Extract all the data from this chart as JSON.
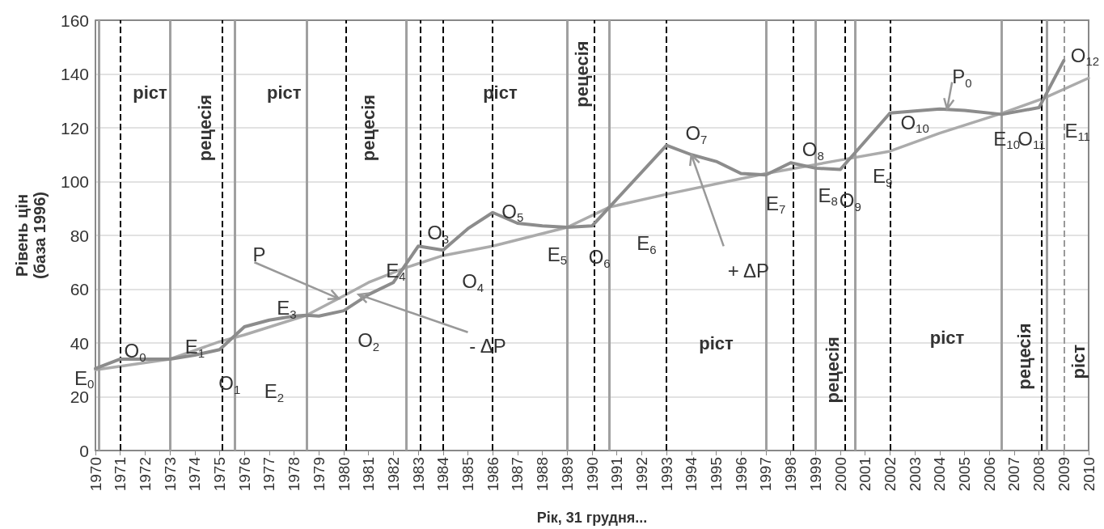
{
  "chart_data": {
    "type": "line",
    "xlabel": "Рік, 31 грудня...",
    "ylabel": "Рівень цін\n(база 1996)",
    "xlim": [
      1970,
      2010
    ],
    "xticks": [
      1970,
      1971,
      1972,
      1973,
      1974,
      1975,
      1976,
      1977,
      1978,
      1979,
      1980,
      1981,
      1982,
      1983,
      1984,
      1985,
      1986,
      1987,
      1988,
      1989,
      1990,
      1991,
      1992,
      1993,
      1994,
      1995,
      1996,
      1997,
      1998,
      1999,
      2000,
      2001,
      2002,
      2003,
      2004,
      2005,
      2006,
      2007,
      2008,
      2009,
      2010
    ],
    "ylim": [
      0,
      160
    ],
    "yticks": [
      0,
      20,
      40,
      60,
      80,
      100,
      120,
      140,
      160
    ],
    "grid": "y",
    "legend": false,
    "marker": "none",
    "line_style": "solid",
    "series": [
      {
        "color": "#8c8c8c",
        "x": [
          1970,
          1971,
          1972,
          1973,
          1974,
          1975,
          1976,
          1977,
          1978,
          1978.5,
          1979,
          1980,
          1981,
          1982,
          1983,
          1984,
          1985,
          1986,
          1987,
          1988,
          1989,
          1990,
          1993,
          1994,
          1995,
          1996,
          1997,
          1998,
          1999,
          2000,
          2002,
          2004,
          2005,
          2006.5,
          2008,
          2009
        ],
        "values": [
          30.5,
          34,
          34,
          34,
          35.5,
          37.5,
          46,
          48.5,
          50,
          50.3,
          50,
          52,
          58,
          62.5,
          76,
          74.5,
          82.5,
          88.5,
          84.5,
          83.5,
          83,
          83.5,
          113.5,
          110,
          107.5,
          103,
          102.5,
          107,
          105,
          104.5,
          125.5,
          127,
          126.5,
          125,
          127.5,
          145
        ]
      },
      {
        "color": "#ababab",
        "x": [
          1970,
          1973,
          1975,
          1976,
          1978.5,
          1980,
          1981,
          1982.5,
          1984,
          1986,
          1989,
          1990.7,
          1993,
          1997,
          2000,
          2002,
          2004,
          2006.5,
          2008.2,
          2010
        ],
        "values": [
          30,
          34,
          40.5,
          43,
          50.3,
          57.5,
          62.5,
          68,
          72.5,
          76,
          83,
          90.5,
          95.3,
          103,
          108,
          111.3,
          118,
          125.4,
          131,
          138.5
        ]
      }
    ],
    "ref_lines": [
      {
        "axis": "x",
        "value": 1970.15,
        "color": "#a0a0a0",
        "line_style": "solid"
      },
      {
        "axis": "x",
        "value": 1971,
        "color": "#000000",
        "line_style": "dashed"
      },
      {
        "axis": "x",
        "value": 1973,
        "color": "#a0a0a0",
        "line_style": "solid"
      },
      {
        "axis": "x",
        "value": 1975.1,
        "color": "#000000",
        "line_style": "dashed"
      },
      {
        "axis": "x",
        "value": 1975.6,
        "color": "#a0a0a0",
        "line_style": "solid"
      },
      {
        "axis": "x",
        "value": 1978.5,
        "color": "#a0a0a0",
        "line_style": "solid"
      },
      {
        "axis": "x",
        "value": 1980.1,
        "color": "#000000",
        "line_style": "dashed"
      },
      {
        "axis": "x",
        "value": 1982.5,
        "color": "#a0a0a0",
        "line_style": "solid"
      },
      {
        "axis": "x",
        "value": 1983.1,
        "color": "#000000",
        "line_style": "dashed"
      },
      {
        "axis": "x",
        "value": 1984,
        "color": "#000000",
        "line_style": "dashed"
      },
      {
        "axis": "x",
        "value": 1986,
        "color": "#000000",
        "line_style": "dashed"
      },
      {
        "axis": "x",
        "value": 1989,
        "color": "#a0a0a0",
        "line_style": "solid"
      },
      {
        "axis": "x",
        "value": 1990.1,
        "color": "#000000",
        "line_style": "dashed"
      },
      {
        "axis": "x",
        "value": 1990.7,
        "color": "#a0a0a0",
        "line_style": "solid"
      },
      {
        "axis": "x",
        "value": 1993,
        "color": "#000000",
        "line_style": "dashed"
      },
      {
        "axis": "x",
        "value": 1997,
        "color": "#a0a0a0",
        "line_style": "solid"
      },
      {
        "axis": "x",
        "value": 1998.1,
        "color": "#000000",
        "line_style": "dashed"
      },
      {
        "axis": "x",
        "value": 1999,
        "color": "#a0a0a0",
        "line_style": "solid"
      },
      {
        "axis": "x",
        "value": 2000.2,
        "color": "#000000",
        "line_style": "dashed"
      },
      {
        "axis": "x",
        "value": 2000.6,
        "color": "#a0a0a0",
        "line_style": "solid"
      },
      {
        "axis": "x",
        "value": 2002,
        "color": "#000000",
        "line_style": "dashed"
      },
      {
        "axis": "x",
        "value": 2006.5,
        "color": "#a0a0a0",
        "line_style": "solid"
      },
      {
        "axis": "x",
        "value": 2008.1,
        "color": "#000000",
        "line_style": "dashed"
      },
      {
        "axis": "x",
        "value": 2008.3,
        "color": "#a0a0a0",
        "line_style": "solid"
      },
      {
        "axis": "x",
        "value": 2009,
        "color": "#999999",
        "line_style": "dashed"
      }
    ],
    "annotations": [
      "ріст",
      "рецесія",
      "ріст",
      "рецесія",
      "ріст",
      "рецесія",
      "ріст",
      "рецесія",
      "ріст",
      "рецесія",
      "ріст",
      "E$_{0}$",
      "O$_{0}$",
      "E$_{1}$",
      "O$_{1}$",
      "E$_{2}$",
      "E$_{3}$",
      "O$_{2}$",
      {
        "text": "P",
        "x": 1979.8,
        "y": 56.5
      },
      "E$_{4}$",
      "O$_{3}$",
      "O$_{4}$",
      "O$_{5}$",
      {
        "text": "- ΔP",
        "x": 1980.6,
        "y": 58
      },
      "E$_{5}$",
      "O$_{6}$",
      "E$_{6}$",
      "O$_{7}$",
      {
        "text": "+ ΔP",
        "x": 1994,
        "y": 110
      },
      "E$_{7}$",
      "O$_{8}$",
      "E$_{8}$",
      "O$_{9}$",
      "E$_{9}$",
      "O$_{10}$",
      {
        "text": "P$_{0}$",
        "x": 2004.3,
        "y": 127
      },
      "E$_{10}$",
      "O$_{11}$",
      "E$_{11}$",
      "O$_{12}$"
    ]
  }
}
